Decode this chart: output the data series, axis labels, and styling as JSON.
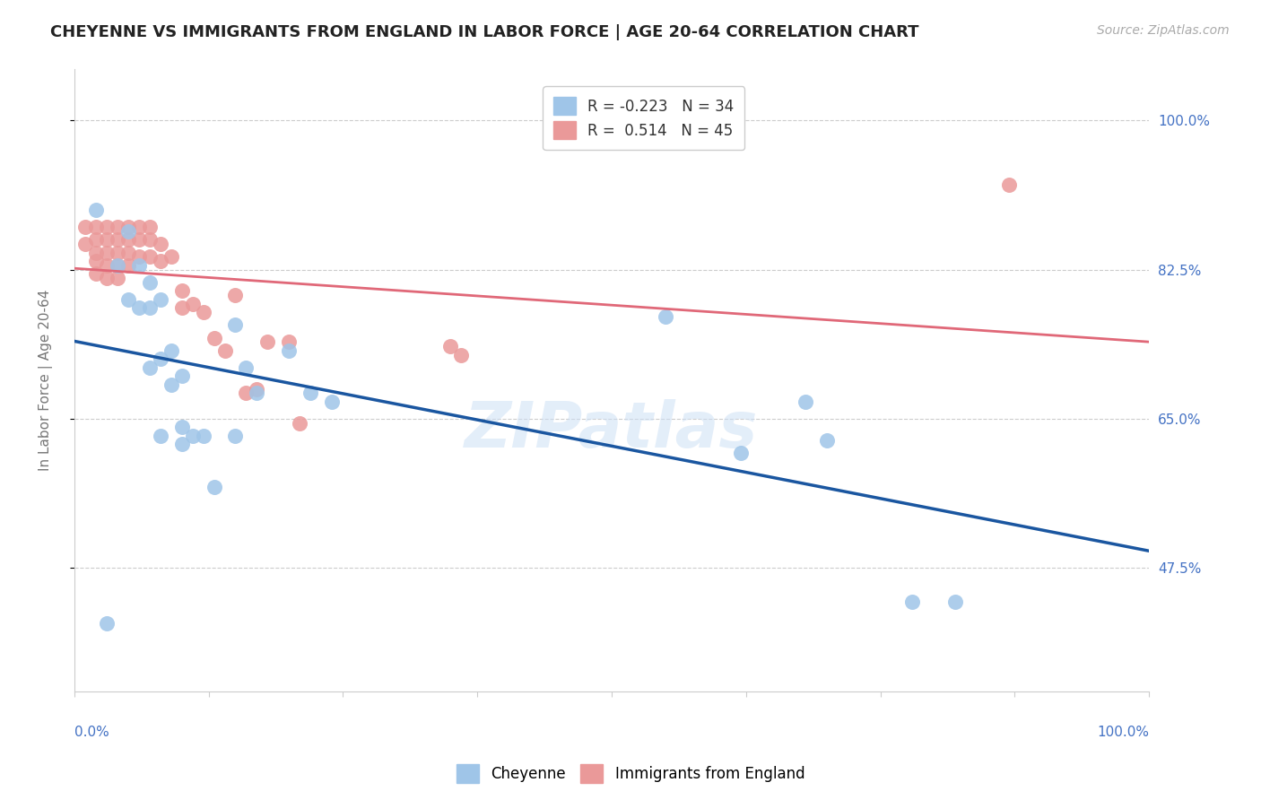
{
  "title": "CHEYENNE VS IMMIGRANTS FROM ENGLAND IN LABOR FORCE | AGE 20-64 CORRELATION CHART",
  "source": "Source: ZipAtlas.com",
  "ylabel": "In Labor Force | Age 20-64",
  "ytick_vals": [
    0.475,
    0.65,
    0.825,
    1.0
  ],
  "ytick_labels": [
    "47.5%",
    "65.0%",
    "82.5%",
    "100.0%"
  ],
  "xlim": [
    0.0,
    1.0
  ],
  "ylim": [
    0.33,
    1.06
  ],
  "legend_r_cheyenne": "-0.223",
  "legend_n_cheyenne": "34",
  "legend_r_england": "0.514",
  "legend_n_england": "45",
  "watermark": "ZIPatlas",
  "cheyenne_color": "#9fc5e8",
  "england_color": "#ea9999",
  "cheyenne_line_color": "#1a56a0",
  "england_line_color": "#e06878",
  "cheyenne_x": [
    0.02,
    0.03,
    0.04,
    0.05,
    0.05,
    0.06,
    0.06,
    0.07,
    0.07,
    0.07,
    0.08,
    0.08,
    0.08,
    0.09,
    0.09,
    0.1,
    0.1,
    0.1,
    0.11,
    0.12,
    0.13,
    0.15,
    0.15,
    0.16,
    0.17,
    0.2,
    0.22,
    0.24,
    0.55,
    0.62,
    0.68,
    0.7,
    0.78,
    0.82
  ],
  "cheyenne_y": [
    0.895,
    0.41,
    0.83,
    0.87,
    0.79,
    0.78,
    0.83,
    0.81,
    0.78,
    0.71,
    0.79,
    0.72,
    0.63,
    0.73,
    0.69,
    0.7,
    0.64,
    0.62,
    0.63,
    0.63,
    0.57,
    0.76,
    0.63,
    0.71,
    0.68,
    0.73,
    0.68,
    0.67,
    0.77,
    0.61,
    0.67,
    0.625,
    0.435,
    0.435
  ],
  "england_x": [
    0.01,
    0.01,
    0.02,
    0.02,
    0.02,
    0.02,
    0.02,
    0.03,
    0.03,
    0.03,
    0.03,
    0.03,
    0.04,
    0.04,
    0.04,
    0.04,
    0.04,
    0.05,
    0.05,
    0.05,
    0.05,
    0.06,
    0.06,
    0.06,
    0.07,
    0.07,
    0.07,
    0.08,
    0.08,
    0.09,
    0.1,
    0.1,
    0.11,
    0.12,
    0.13,
    0.14,
    0.15,
    0.16,
    0.17,
    0.18,
    0.2,
    0.21,
    0.35,
    0.36,
    0.87
  ],
  "england_y": [
    0.875,
    0.855,
    0.875,
    0.86,
    0.845,
    0.835,
    0.82,
    0.875,
    0.86,
    0.845,
    0.83,
    0.815,
    0.875,
    0.86,
    0.845,
    0.83,
    0.815,
    0.875,
    0.86,
    0.845,
    0.83,
    0.875,
    0.86,
    0.84,
    0.875,
    0.86,
    0.84,
    0.855,
    0.835,
    0.84,
    0.8,
    0.78,
    0.785,
    0.775,
    0.745,
    0.73,
    0.795,
    0.68,
    0.685,
    0.74,
    0.74,
    0.645,
    0.735,
    0.725,
    0.925
  ],
  "title_color": "#222222",
  "tick_color": "#4472c4",
  "grid_color": "#cccccc",
  "grid_linestyle": "--",
  "grid_linewidth": 0.8
}
